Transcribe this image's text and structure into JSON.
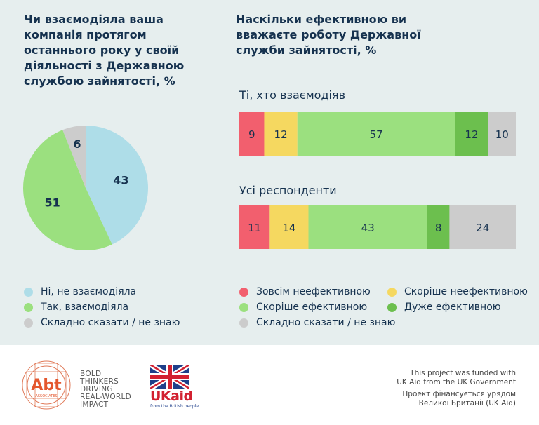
{
  "left_title": "Чи взаємодіяла ваша компанія протягом останнього року у своїй діяльності з Державною службою зайнятості, %",
  "right_title": "Наскільки ефективною ви вважаєте роботу Державної служби зайнятості, %",
  "chart_data": [
    {
      "type": "pie",
      "title": "Чи взаємодіяла ваша компанія протягом останнього року у своїй діяльності з Державною службою зайнятості, %",
      "labels": [
        "Ні, не взаємодіяла",
        "Так, взаємодіяла",
        "Складно сказати / не знаю"
      ],
      "values": [
        43,
        51,
        6
      ],
      "colors": [
        "#aedde8",
        "#9be07f",
        "#cccccc"
      ],
      "legend_position": "bottom"
    },
    {
      "type": "bar",
      "orientation": "horizontal",
      "stacked": true,
      "title": "Наскільки ефективною ви вважаєте роботу Державної служби зайнятості, %",
      "categories": [
        "Ті, хто взаємодіяв",
        "Усі респонденти"
      ],
      "series": [
        {
          "name": "Зовсім неефективною",
          "color": "#f25f6e",
          "values": [
            9,
            11
          ]
        },
        {
          "name": "Скоріше неефективною",
          "color": "#f5d860",
          "values": [
            12,
            14
          ]
        },
        {
          "name": "Скоріше ефективною",
          "color": "#9be07f",
          "values": [
            57,
            43
          ]
        },
        {
          "name": "Дуже ефективною",
          "color": "#6cbf4e",
          "values": [
            12,
            8
          ]
        },
        {
          "name": "Складно сказати / не знаю",
          "color": "#cccccc",
          "values": [
            10,
            24
          ]
        }
      ],
      "legend_position": "bottom"
    }
  ],
  "footer": {
    "abt_logo_text": "Abt",
    "abt_logo_subtext": "ASSOCIATES",
    "abt_tagline": [
      "BOLD",
      "THINKERS",
      "DRIVING",
      "REAL-WORLD",
      "IMPACT"
    ],
    "ukaid_text": "UKaid",
    "ukaid_sub": "from the British people",
    "credit_en": [
      "This project was funded with",
      "UK Aid from the UK Government"
    ],
    "credit_uk": [
      "Проект фінансується урядом",
      "Великої Британії (UK Aid)"
    ]
  }
}
